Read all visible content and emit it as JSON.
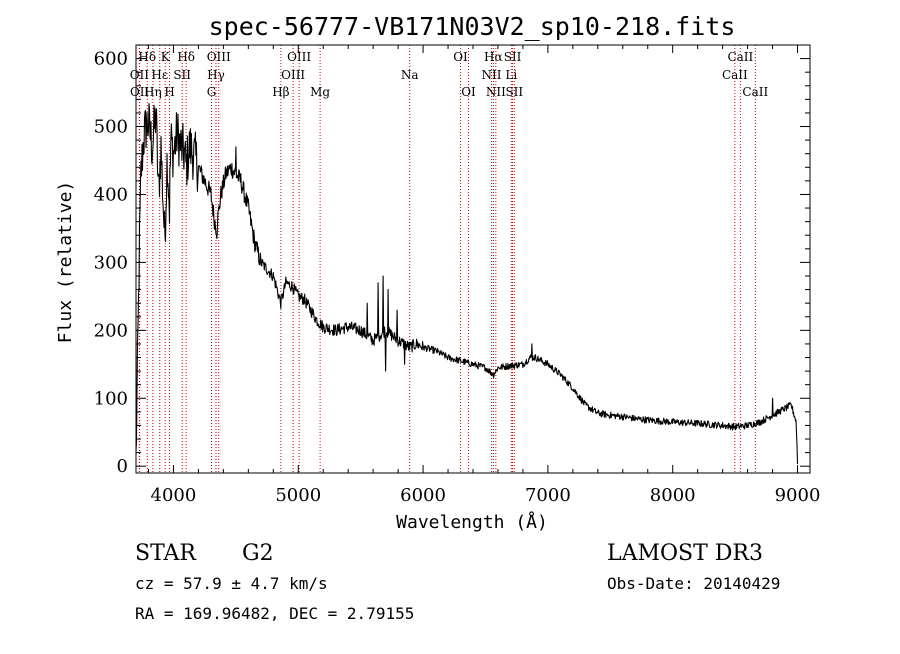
{
  "chart_data": {
    "type": "line",
    "title": "spec-56777-VB171N03V2_sp10-218.fits",
    "xlabel": "Wavelength (Å)",
    "ylabel": "Flux (relative)",
    "xlim": [
      3700,
      9100
    ],
    "ylim": [
      -10,
      620
    ],
    "xticks": [
      4000,
      5000,
      6000,
      7000,
      8000,
      9000
    ],
    "yticks": [
      0,
      100,
      200,
      300,
      400,
      500,
      600
    ],
    "spectrum_anchors": [
      [
        3700,
        10
      ],
      [
        3710,
        120
      ],
      [
        3725,
        300
      ],
      [
        3740,
        430
      ],
      [
        3760,
        480
      ],
      [
        3780,
        500
      ],
      [
        3800,
        505
      ],
      [
        3830,
        470
      ],
      [
        3860,
        520
      ],
      [
        3880,
        400
      ],
      [
        3900,
        470
      ],
      [
        3930,
        330
      ],
      [
        3950,
        460
      ],
      [
        3968,
        380
      ],
      [
        3980,
        480
      ],
      [
        4000,
        460
      ],
      [
        4030,
        490
      ],
      [
        4060,
        470
      ],
      [
        4090,
        460
      ],
      [
        4101,
        440
      ],
      [
        4130,
        470
      ],
      [
        4160,
        460
      ],
      [
        4200,
        440
      ],
      [
        4250,
        420
      ],
      [
        4300,
        400
      ],
      [
        4330,
        360
      ],
      [
        4345,
        350
      ],
      [
        4380,
        400
      ],
      [
        4420,
        430
      ],
      [
        4460,
        440
      ],
      [
        4500,
        430
      ],
      [
        4540,
        420
      ],
      [
        4600,
        380
      ],
      [
        4650,
        330
      ],
      [
        4700,
        300
      ],
      [
        4750,
        290
      ],
      [
        4800,
        280
      ],
      [
        4861,
        240
      ],
      [
        4900,
        270
      ],
      [
        4950,
        265
      ],
      [
        5000,
        250
      ],
      [
        5050,
        245
      ],
      [
        5100,
        230
      ],
      [
        5150,
        215
      ],
      [
        5200,
        205
      ],
      [
        5300,
        200
      ],
      [
        5400,
        205
      ],
      [
        5500,
        200
      ],
      [
        5600,
        185
      ],
      [
        5700,
        200
      ],
      [
        5800,
        185
      ],
      [
        5893,
        175
      ],
      [
        5950,
        180
      ],
      [
        6000,
        175
      ],
      [
        6100,
        170
      ],
      [
        6200,
        160
      ],
      [
        6300,
        155
      ],
      [
        6400,
        150
      ],
      [
        6500,
        145
      ],
      [
        6563,
        135
      ],
      [
        6600,
        145
      ],
      [
        6700,
        148
      ],
      [
        6800,
        150
      ],
      [
        6860,
        160
      ],
      [
        6900,
        160
      ],
      [
        7000,
        150
      ],
      [
        7100,
        135
      ],
      [
        7200,
        115
      ],
      [
        7300,
        90
      ],
      [
        7400,
        78
      ],
      [
        7500,
        75
      ],
      [
        7600,
        73
      ],
      [
        7700,
        70
      ],
      [
        7800,
        68
      ],
      [
        8000,
        65
      ],
      [
        8200,
        63
      ],
      [
        8400,
        60
      ],
      [
        8500,
        58
      ],
      [
        8600,
        60
      ],
      [
        8700,
        65
      ],
      [
        8800,
        75
      ],
      [
        8900,
        85
      ],
      [
        8950,
        90
      ],
      [
        8990,
        65
      ],
      [
        9000,
        5
      ]
    ],
    "spikes": [
      [
        4345,
        335
      ],
      [
        4500,
        470
      ],
      [
        5680,
        280
      ],
      [
        5700,
        310
      ],
      [
        5720,
        260
      ],
      [
        5640,
        270
      ],
      [
        5550,
        240
      ],
      [
        5790,
        230
      ],
      [
        6870,
        180
      ],
      [
        8800,
        100
      ],
      [
        5700,
        140
      ],
      [
        5850,
        150
      ]
    ],
    "lines": [
      {
        "name": "Hδ",
        "wavelength": 3790,
        "label_row": 0
      },
      {
        "name": "OII",
        "wavelength": 3727,
        "label_row": 1
      },
      {
        "name": "OII",
        "wavelength": 3729,
        "label_row": 2
      },
      {
        "name": "K",
        "wavelength": 3934,
        "label_row": 0
      },
      {
        "name": "H",
        "wavelength": 3969,
        "label_row": 2
      },
      {
        "name": "Hε",
        "wavelength": 3890,
        "label_row": 1
      },
      {
        "name": "Hη",
        "wavelength": 3835,
        "label_row": 2
      },
      {
        "name": "Hδ",
        "wavelength": 4102,
        "label_row": 0
      },
      {
        "name": "SII",
        "wavelength": 4070,
        "label_row": 1
      },
      {
        "name": "OIII",
        "wavelength": 4363,
        "label_row": 0
      },
      {
        "name": "Hγ",
        "wavelength": 4341,
        "label_row": 1
      },
      {
        "name": "G",
        "wavelength": 4305,
        "label_row": 2
      },
      {
        "name": "Hβ",
        "wavelength": 4861,
        "label_row": 2
      },
      {
        "name": "OIII",
        "wavelength": 5007,
        "label_row": 0
      },
      {
        "name": "OIII",
        "wavelength": 4959,
        "label_row": 1
      },
      {
        "name": "Mg",
        "wavelength": 5175,
        "label_row": 2
      },
      {
        "name": "Na",
        "wavelength": 5893,
        "label_row": 1
      },
      {
        "name": "OI",
        "wavelength": 6300,
        "label_row": 0
      },
      {
        "name": "OI",
        "wavelength": 6364,
        "label_row": 2
      },
      {
        "name": "Hα",
        "wavelength": 6563,
        "label_row": 0
      },
      {
        "name": "NII",
        "wavelength": 6548,
        "label_row": 1
      },
      {
        "name": "NII",
        "wavelength": 6583,
        "label_row": 2
      },
      {
        "name": "SII",
        "wavelength": 6717,
        "label_row": 0
      },
      {
        "name": "Li",
        "wavelength": 6707,
        "label_row": 1
      },
      {
        "name": "SII",
        "wavelength": 6731,
        "label_row": 2
      },
      {
        "name": "CaII",
        "wavelength": 8542,
        "label_row": 0
      },
      {
        "name": "CaII",
        "wavelength": 8498,
        "label_row": 1
      },
      {
        "name": "CaII",
        "wavelength": 8662,
        "label_row": 2
      }
    ],
    "line_color": "#cc0000",
    "spectrum_color": "#000000"
  },
  "info": {
    "object_class": "STAR",
    "subclass": "G2",
    "cz": "cz = 57.9 ± 4.7 km/s",
    "radec": "RA = 169.96482, DEC =   2.79155",
    "survey": "LAMOST DR3",
    "obs_date": "Obs-Date: 20140429"
  }
}
